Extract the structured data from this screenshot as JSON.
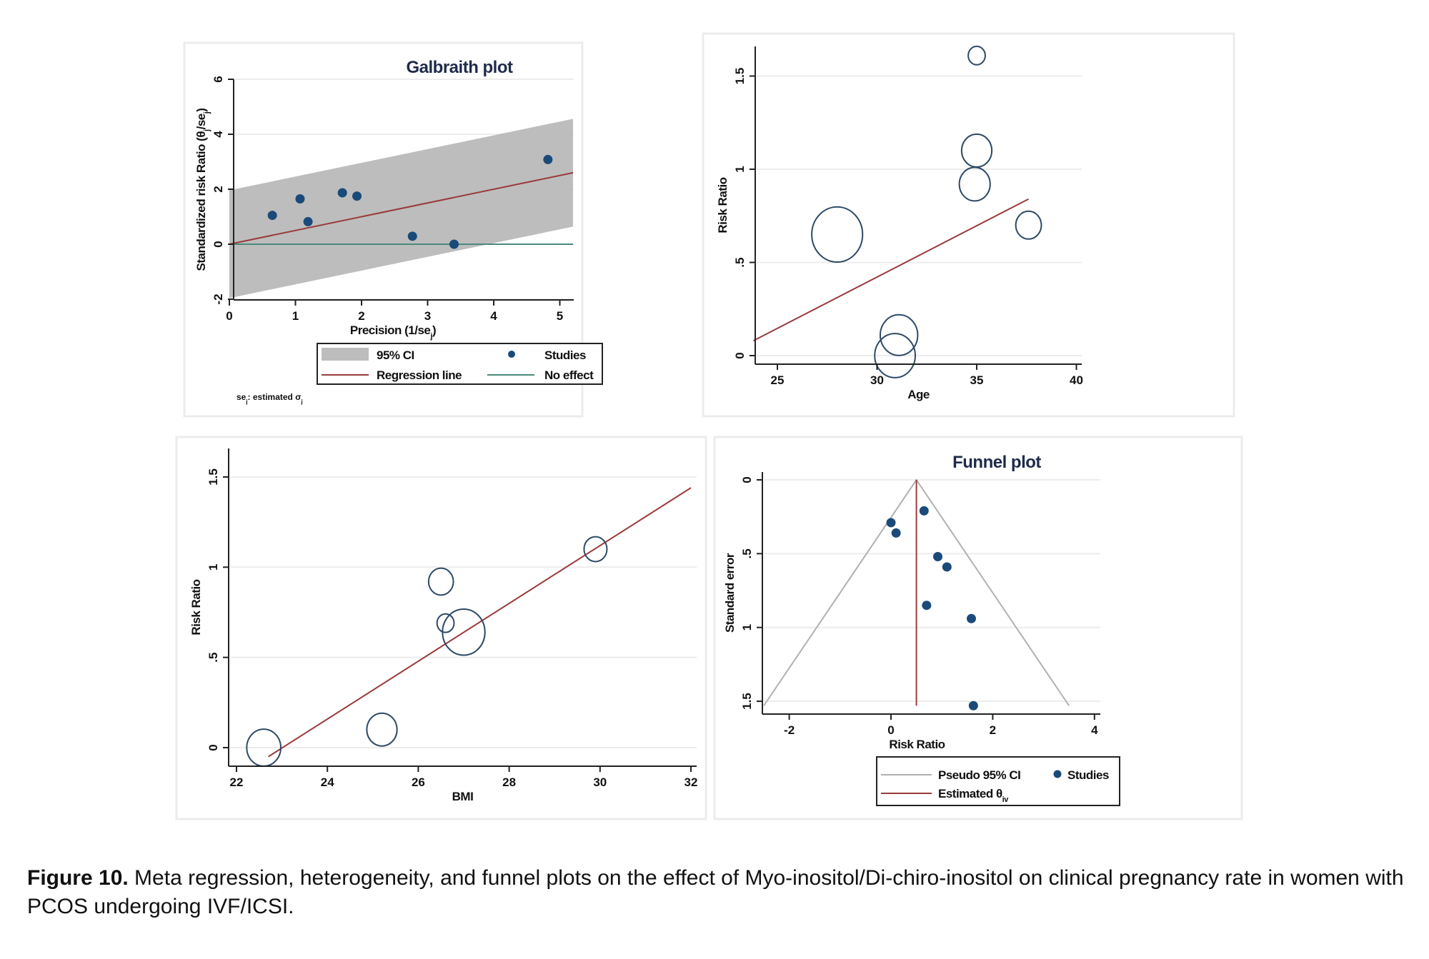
{
  "caption": {
    "label": "Figure 10.",
    "text": " Meta regression, heterogeneity, and funnel plots on the effect of Myo-inositol/Di-chiro-inositol on clinical pregnancy rate in women with PCOS undergoing IVF/ICSI."
  },
  "colors": {
    "study_dot": "#1a4a7a",
    "ci_band": "#bdbdbd",
    "regression_line": "#9a3a3a",
    "no_effect_line": "#4a8a7a",
    "bubble_stroke": "#2e4a66",
    "pseudo_ci_line": "#b0b0b0",
    "title": "#1e2b4a"
  },
  "chart_data": [
    {
      "id": "galbraith",
      "type": "scatter",
      "title": "Galbraith plot",
      "xlabel": "Precision (1/se_j)",
      "ylabel": "Standardized risk Ratio (θ_j/se_j)",
      "xlim": [
        0,
        5.2
      ],
      "ylim": [
        -2,
        6
      ],
      "xticks": [
        0,
        1,
        2,
        3,
        4,
        5
      ],
      "yticks": [
        -2,
        0,
        2,
        4,
        6
      ],
      "ytick_labels": [
        "-2",
        "0",
        "2",
        "4",
        "6"
      ],
      "grid": true,
      "points": [
        {
          "x": 0.65,
          "y": 1.05
        },
        {
          "x": 1.07,
          "y": 1.65
        },
        {
          "x": 1.19,
          "y": 0.82
        },
        {
          "x": 1.71,
          "y": 1.87
        },
        {
          "x": 1.93,
          "y": 1.75
        },
        {
          "x": 2.77,
          "y": 0.29
        },
        {
          "x": 3.4,
          "y": 0.0
        },
        {
          "x": 4.82,
          "y": 3.08
        }
      ],
      "regression_line": {
        "slope": 0.5,
        "intercept": 0.0
      },
      "ci_halfwidth": 1.96,
      "no_effect": 0,
      "legend": {
        "placement": "bottom",
        "items": [
          {
            "key": "ci",
            "label": "95% CI"
          },
          {
            "key": "studies",
            "label": "Studies"
          },
          {
            "key": "regression",
            "label": "Regression line"
          },
          {
            "key": "noeffect",
            "label": "No effect"
          }
        ]
      },
      "note": "se_j: estimated σ_j"
    },
    {
      "id": "age",
      "type": "scatter",
      "title": "",
      "xlabel": "Age",
      "ylabel": "Risk Ratio",
      "xlim": [
        23.6,
        40.3
      ],
      "ylim": [
        -0.09,
        1.65
      ],
      "xticks": [
        25,
        30,
        35,
        40
      ],
      "yticks": [
        0,
        0.5,
        1,
        1.5
      ],
      "ytick_labels": [
        "0",
        ".5",
        "1",
        "1.5"
      ],
      "grid": true,
      "points": [
        {
          "x": 35.0,
          "y": 1.61,
          "weight": 0.2
        },
        {
          "x": 35.0,
          "y": 1.1,
          "weight": 0.9
        },
        {
          "x": 34.9,
          "y": 0.92,
          "weight": 0.95
        },
        {
          "x": 37.6,
          "y": 0.7,
          "weight": 0.6
        },
        {
          "x": 28.0,
          "y": 0.65,
          "weight": 3.0
        },
        {
          "x": 31.1,
          "y": 0.11,
          "weight": 1.5
        },
        {
          "x": 30.9,
          "y": 0.0,
          "weight": 1.8
        }
      ],
      "fit_line": {
        "x": [
          23.8,
          37.6
        ],
        "y": [
          0.08,
          0.84
        ]
      }
    },
    {
      "id": "bmi",
      "type": "scatter",
      "title": "",
      "xlabel": "BMI",
      "ylabel": "Risk Ratio",
      "xlim": [
        21.6,
        32.4
      ],
      "ylim": [
        -0.1,
        1.66
      ],
      "xticks": [
        22,
        24,
        26,
        28,
        30,
        32
      ],
      "yticks": [
        0,
        0.5,
        1,
        1.5
      ],
      "ytick_labels": [
        "0",
        ".5",
        "1",
        "1.5"
      ],
      "grid": true,
      "points": [
        {
          "x": 22.6,
          "y": 0.0,
          "weight": 1.2
        },
        {
          "x": 25.2,
          "y": 0.1,
          "weight": 0.9
        },
        {
          "x": 26.5,
          "y": 0.92,
          "weight": 0.55
        },
        {
          "x": 26.6,
          "y": 0.69,
          "weight": 0.2
        },
        {
          "x": 27.0,
          "y": 0.64,
          "weight": 2.0
        },
        {
          "x": 29.9,
          "y": 1.1,
          "weight": 0.45
        }
      ],
      "fit_line": {
        "x": [
          22.7,
          32.0
        ],
        "y": [
          -0.05,
          1.44
        ]
      }
    },
    {
      "id": "funnel",
      "type": "scatter",
      "title": "Funnel plot",
      "xlabel": "Risk Ratio",
      "ylabel": "Standard error",
      "xlim": [
        -2.6,
        4.05
      ],
      "ylim": [
        -0.05,
        1.6
      ],
      "y_reversed": true,
      "xticks": [
        -2,
        0,
        2,
        4
      ],
      "yticks": [
        0,
        0.5,
        1,
        1.5
      ],
      "ytick_labels": [
        "0",
        ".5",
        "1",
        "1.5"
      ],
      "grid": true,
      "points": [
        {
          "x": 0.0,
          "y": 0.29
        },
        {
          "x": 0.1,
          "y": 0.36
        },
        {
          "x": 0.65,
          "y": 0.21
        },
        {
          "x": 0.92,
          "y": 0.52
        },
        {
          "x": 1.1,
          "y": 0.59
        },
        {
          "x": 0.7,
          "y": 0.85
        },
        {
          "x": 1.58,
          "y": 0.94
        },
        {
          "x": 1.62,
          "y": 1.53
        }
      ],
      "estimated_theta": 0.5,
      "pseudo_ci": {
        "apex": [
          0.5,
          0
        ],
        "left_bottom": [
          -2.5,
          1.53
        ],
        "right_bottom": [
          3.5,
          1.53
        ]
      },
      "legend": {
        "placement": "bottom",
        "items": [
          {
            "key": "pseudoci",
            "label": "Pseudo 95% CI"
          },
          {
            "key": "studies",
            "label": "Studies"
          },
          {
            "key": "theta",
            "label": "Estimated θ_IV"
          }
        ]
      }
    }
  ]
}
